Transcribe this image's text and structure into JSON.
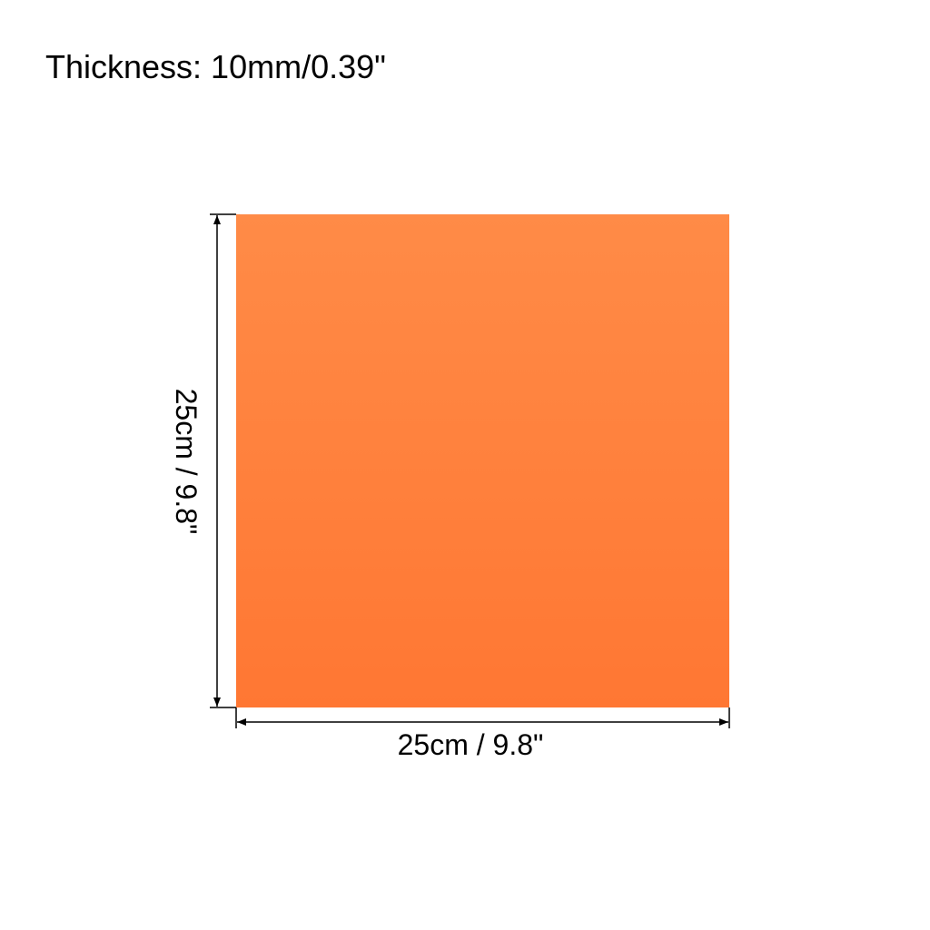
{
  "title": "Thickness: 10mm/0.39\"",
  "height_label": "25cm / 9.8\"",
  "width_label": "25cm / 9.8\"",
  "colors": {
    "sheet_top": "#ff8b47",
    "sheet_bottom": "#ff7733",
    "lines": "#000000"
  }
}
